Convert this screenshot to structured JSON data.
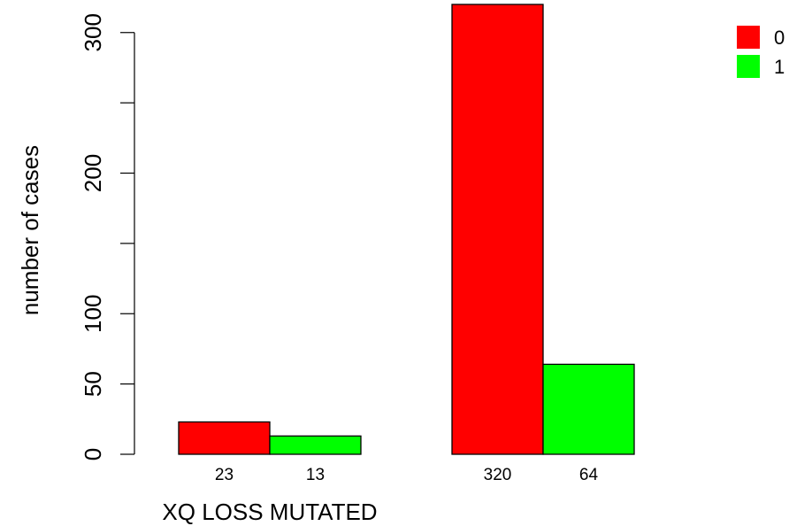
{
  "chart_data": {
    "type": "bar",
    "groups": [
      {
        "bar_labels": [
          "23",
          "13"
        ]
      },
      {
        "bar_labels": [
          "320",
          "64"
        ]
      }
    ],
    "series": [
      {
        "name": "0",
        "color": "#ff0000",
        "values": [
          23,
          320
        ]
      },
      {
        "name": "1",
        "color": "#00ff00",
        "values": [
          13,
          64
        ]
      }
    ],
    "xlabel": "XQ LOSS MUTATED",
    "ylabel": "number of cases",
    "yticks": [
      0,
      50,
      100,
      150,
      200,
      250,
      300
    ],
    "ytick_labels": [
      "0",
      "50",
      "100",
      "",
      "200",
      "",
      "300"
    ],
    "ylim": [
      0,
      320
    ],
    "legend_position": "top-right",
    "grid": false
  }
}
